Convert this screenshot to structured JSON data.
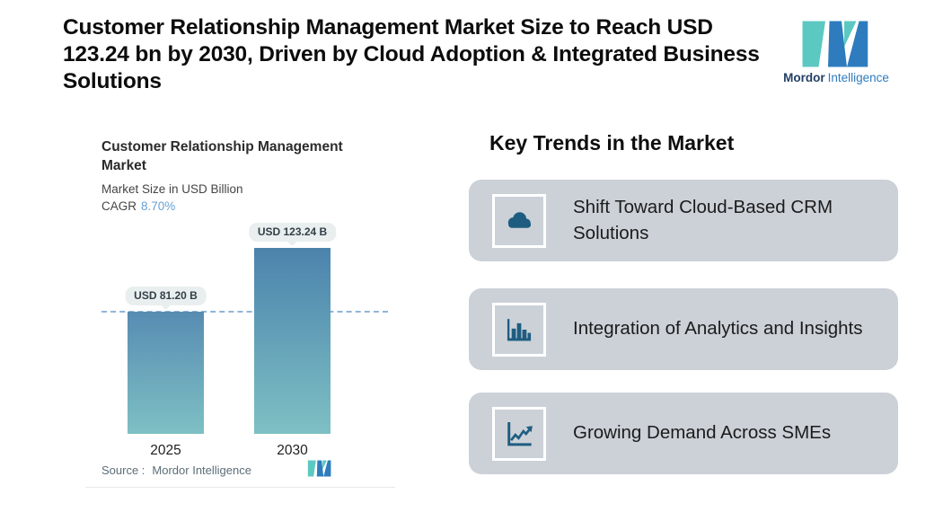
{
  "header": {
    "headline": "Customer Relationship Management Market Size to Reach USD 123.24 bn by 2030, Driven by Cloud Adoption & Integrated Business Solutions",
    "logo": {
      "brand_bold": "Mordor",
      "brand_light": "Intelligence"
    }
  },
  "chart": {
    "title": "Customer Relationship Management Market",
    "subtitle": "Market Size in USD Billion",
    "cagr_label": "CAGR",
    "cagr_value": "8.70%",
    "source_label": "Source :",
    "source_value": "Mordor Intelligence"
  },
  "chart_data": {
    "type": "bar",
    "title": "Customer Relationship Management Market",
    "subtitle": "Market Size in USD Billion",
    "unit": "USD Billion",
    "cagr": "8.70%",
    "categories": [
      "2025",
      "2030"
    ],
    "values": [
      81.2,
      123.24
    ],
    "data_labels": [
      "USD 81.20 B",
      "USD 123.24 B"
    ],
    "reference_line_value": 81.2,
    "source": "Source : Mordor Intelligence",
    "bar_gradient_top": "#4B83AC",
    "bar_gradient_bottom": "#7EC0C4",
    "reference_line_color": "#8FB5DA",
    "grid": false,
    "legend": false
  },
  "trends": {
    "heading": "Key Trends in the Market",
    "items": [
      {
        "icon": "cloud-icon",
        "text": "Shift Toward Cloud-Based CRM Solutions"
      },
      {
        "icon": "bar-chart-icon",
        "text": "Integration of Analytics and Insights"
      },
      {
        "icon": "line-growth-icon",
        "text": "Growing Demand Across SMEs"
      }
    ]
  },
  "colors": {
    "card_bg": "#CCD1D8",
    "icon_blue": "#1F5D80",
    "badge_bg": "#E9EEEF",
    "cagr_blue": "#69A0D5",
    "brand_teal": "#5CC8C2",
    "brand_blue": "#2E7CBE"
  }
}
